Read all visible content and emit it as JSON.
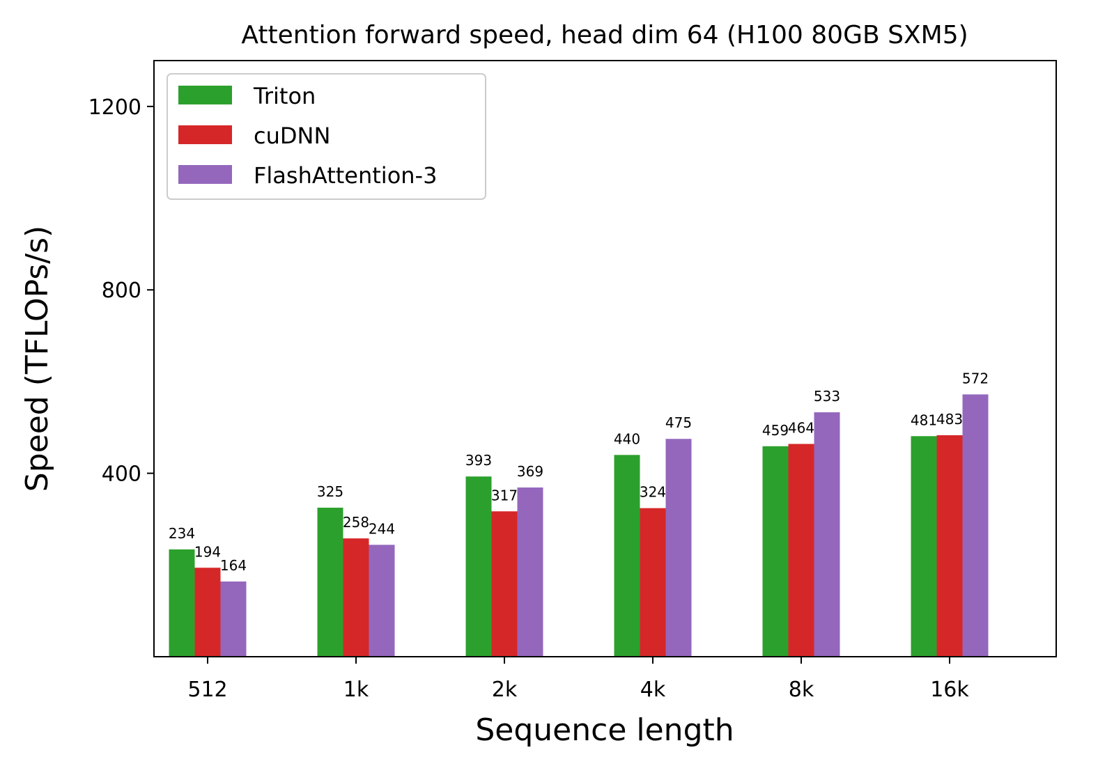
{
  "chart_data": {
    "type": "bar",
    "title": "Attention forward speed, head dim 64 (H100 80GB SXM5)",
    "xlabel": "Sequence length",
    "ylabel": "Speed (TFLOPs/s)",
    "categories": [
      "512",
      "1k",
      "2k",
      "4k",
      "8k",
      "16k"
    ],
    "series": [
      {
        "name": "Triton",
        "color": "#2ca02c",
        "values": [
          234,
          325,
          393,
          440,
          459,
          481
        ]
      },
      {
        "name": "cuDNN",
        "color": "#d62728",
        "values": [
          194,
          258,
          317,
          324,
          464,
          483
        ]
      },
      {
        "name": "FlashAttention-3",
        "color": "#9467bd",
        "values": [
          164,
          244,
          369,
          475,
          533,
          572
        ]
      }
    ],
    "ylim": [
      0,
      1300
    ],
    "yticks": [
      400,
      800,
      1200
    ],
    "grid": false,
    "legend_position": "upper-left"
  }
}
